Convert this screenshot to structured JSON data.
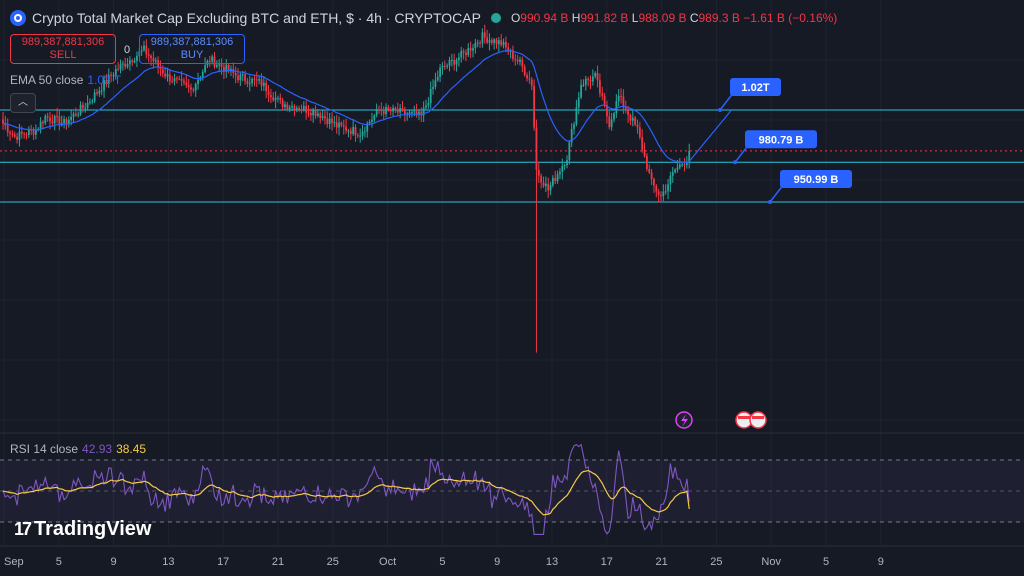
{
  "header": {
    "title": "Crypto Total Market Cap Excluding BTC and ETH, $ · 4h · CRYPTOCAP",
    "open_label": "O",
    "open_value": "990.94 B",
    "high_label": "H",
    "high_value": "991.82 B",
    "low_label": "L",
    "low_value": "988.09 B",
    "close_label": "C",
    "close_value": "989.3 B",
    "change": "−1.61 B (−0.16%)"
  },
  "trade": {
    "sell_price": "989,387,881,306",
    "sell_label": "SELL",
    "spread": "0",
    "buy_price": "989,387,881,306",
    "buy_label": "BUY"
  },
  "ema_legend": {
    "label": "EMA 50 close",
    "value": "1.02 T"
  },
  "rsi_legend": {
    "label": "RSI 14 close",
    "rsi_value": "42.93",
    "ma_value": "38.45"
  },
  "collapse_icon": "chevron-up-icon",
  "logo": "TradingView",
  "colors": {
    "up": "#26a69a",
    "down": "#f23645",
    "ema": "#2962ff",
    "rsi": "#7e57c2",
    "rsi_ma": "#f7c948",
    "level": "#26c6da",
    "callout": "#2962ff",
    "background": "#161a25"
  },
  "chart_data": {
    "type": "candlestick",
    "x_axis_labels": [
      "Sep",
      "5",
      "9",
      "13",
      "17",
      "21",
      "25",
      "Oct",
      "5",
      "9",
      "13",
      "17",
      "21",
      "25",
      "Nov",
      "5",
      "9"
    ],
    "ylim": [
      780,
      1080
    ],
    "horizontal_levels": [
      1020,
      980.79,
      950.99
    ],
    "current_price": 989.3,
    "callouts": [
      {
        "text": "1.02T",
        "value": 1020
      },
      {
        "text": "980.79 B",
        "value": 980.79
      },
      {
        "text": "950.99 B",
        "value": 950.99
      }
    ],
    "ema50_value": 1020,
    "rsi": {
      "period": 14,
      "value": 42.93,
      "ma": 38.45,
      "upper_band": 70,
      "middle": 50,
      "lower_band": 30
    },
    "price_anchors": [
      [
        0,
        1010
      ],
      [
        5,
        1000
      ],
      [
        14,
        1005
      ],
      [
        18,
        1015
      ],
      [
        26,
        1010
      ],
      [
        36,
        1025
      ],
      [
        48,
        1050
      ],
      [
        60,
        1065
      ],
      [
        70,
        1045
      ],
      [
        80,
        1035
      ],
      [
        88,
        1058
      ],
      [
        100,
        1045
      ],
      [
        110,
        1040
      ],
      [
        118,
        1025
      ],
      [
        126,
        1022
      ],
      [
        134,
        1018
      ],
      [
        142,
        1008
      ],
      [
        152,
        1003
      ],
      [
        160,
        1020
      ],
      [
        170,
        1018
      ],
      [
        178,
        1015
      ],
      [
        186,
        1050
      ],
      [
        196,
        1062
      ],
      [
        204,
        1075
      ],
      [
        212,
        1070
      ],
      [
        220,
        1055
      ],
      [
        225,
        1040
      ],
      [
        227,
        975
      ],
      [
        232,
        960
      ],
      [
        240,
        985
      ],
      [
        246,
        1040
      ],
      [
        252,
        1045
      ],
      [
        258,
        1010
      ],
      [
        262,
        1030
      ],
      [
        270,
        1005
      ],
      [
        276,
        965
      ],
      [
        280,
        955
      ],
      [
        286,
        975
      ],
      [
        292,
        985
      ]
    ],
    "wick_low": {
      "index": 227,
      "value": 838
    }
  }
}
